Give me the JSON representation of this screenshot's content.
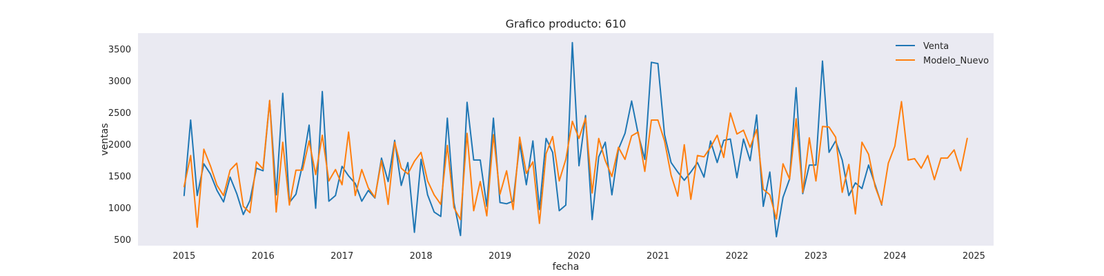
{
  "chart_data": {
    "type": "line",
    "title": "Grafico producto: 610",
    "xlabel": "fecha",
    "ylabel": "ventas",
    "ylim": [
      400,
      3750
    ],
    "xlim": [
      "2014-06-01",
      "2025-04-01"
    ],
    "x_ticks": [
      "2015",
      "2016",
      "2017",
      "2018",
      "2019",
      "2020",
      "2021",
      "2022",
      "2023",
      "2024",
      "2025"
    ],
    "y_ticks": [
      500,
      1000,
      1500,
      2000,
      2500,
      3000,
      3500
    ],
    "grid": false,
    "background": "#eaeaf2",
    "legend": "top-right",
    "series": [
      {
        "name": "Venta",
        "color": "#1f77b4",
        "start": "2015-01",
        "values": [
          1190,
          2380,
          1190,
          1690,
          1530,
          1270,
          1090,
          1480,
          1220,
          890,
          1110,
          1620,
          1580,
          2680,
          1200,
          2800,
          1080,
          1210,
          1680,
          2300,
          990,
          2830,
          1100,
          1190,
          1650,
          1500,
          1380,
          1100,
          1270,
          1150,
          1780,
          1410,
          2060,
          1350,
          1710,
          610,
          1760,
          1200,
          930,
          860,
          2410,
          1080,
          560,
          2660,
          1750,
          1750,
          1020,
          2410,
          1080,
          1060,
          1100,
          2010,
          1360,
          2050,
          970,
          2090,
          1870,
          950,
          1040,
          3600,
          1660,
          2450,
          810,
          1800,
          2030,
          1200,
          1920,
          2170,
          2680,
          2160,
          1760,
          3290,
          3270,
          2150,
          1710,
          1560,
          1430,
          1560,
          1710,
          1480,
          2050,
          1710,
          2060,
          2080,
          1470,
          2080,
          1740,
          2460,
          1020,
          1560,
          540,
          1160,
          1450,
          2890,
          1220,
          1670,
          1670,
          3310,
          1870,
          2050,
          1750,
          1190,
          1390,
          1300,
          1670,
          1360,
          1040
        ]
      },
      {
        "name": "Modelo_Nuevo",
        "color": "#ff7f0e",
        "start": "2015-01",
        "values": [
          1330,
          1820,
          690,
          1920,
          1660,
          1350,
          1190,
          1590,
          1700,
          1020,
          920,
          1720,
          1610,
          2690,
          930,
          2030,
          1040,
          1590,
          1590,
          2050,
          1520,
          2140,
          1420,
          1600,
          1360,
          2190,
          1190,
          1600,
          1310,
          1160,
          1740,
          1050,
          2030,
          1620,
          1530,
          1730,
          1870,
          1420,
          1200,
          1050,
          1980,
          1000,
          810,
          2170,
          950,
          1410,
          870,
          2150,
          1210,
          1580,
          970,
          2110,
          1540,
          1720,
          750,
          1850,
          2120,
          1420,
          1760,
          2360,
          2090,
          2410,
          1230,
          2090,
          1740,
          1490,
          1950,
          1760,
          2130,
          2190,
          1570,
          2380,
          2380,
          2050,
          1510,
          1180,
          1990,
          1130,
          1820,
          1800,
          1950,
          2140,
          1790,
          2490,
          2160,
          2220,
          1950,
          2230,
          1290,
          1200,
          820,
          1690,
          1450,
          2400,
          1240,
          2100,
          1420,
          2280,
          2270,
          2110,
          1240,
          1680,
          900,
          2030,
          1840,
          1330,
          1050,
          1700,
          1970,
          2670,
          1750,
          1770,
          1620,
          1820,
          1440,
          1780,
          1780,
          1910,
          1580,
          2090
        ]
      }
    ]
  }
}
